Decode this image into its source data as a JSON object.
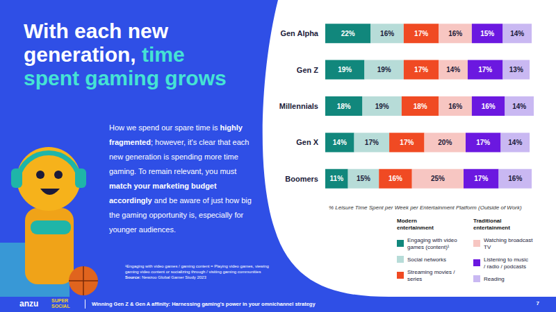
{
  "chart_data": {
    "type": "bar",
    "orientation": "horizontal",
    "stacked": true,
    "data_labels": true,
    "tick_labels": "y",
    "grid": false,
    "legend": "bottom",
    "xlabel": "% Leisure Time Spent per Week per Entertainment Platform (Outside of Work)",
    "categories": [
      "Gen Alpha",
      "Gen Z",
      "Millennials",
      "Gen X",
      "Boomers"
    ],
    "xlim": [
      0,
      101
    ],
    "series": [
      {
        "name": "Engaging with video games (content)¹",
        "group": "Modern entertainment",
        "color": "#11877c",
        "values": [
          22,
          19,
          18,
          14,
          11
        ],
        "value_labels": [
          "22%",
          "19%",
          "18%",
          "14%",
          "11%"
        ]
      },
      {
        "name": "Social networks",
        "group": "Modern entertainment",
        "color": "#b7dcd8",
        "values": [
          16,
          19,
          19,
          17,
          15
        ],
        "value_labels": [
          "16%",
          "19%",
          "19%",
          "17%",
          "15%"
        ]
      },
      {
        "name": "Streaming movies / series",
        "group": "Modern entertainment",
        "color": "#f04a23",
        "values": [
          17,
          17,
          18,
          17,
          16
        ],
        "value_labels": [
          "17%",
          "17%",
          "18%",
          "17%",
          "16%"
        ]
      },
      {
        "name": "Watching broadcast TV",
        "group": "Traditional entertainment",
        "color": "#f7c6c2",
        "values": [
          16,
          14,
          16,
          20,
          25
        ],
        "value_labels": [
          "16%",
          "14%",
          "16%",
          "20%",
          "25%"
        ]
      },
      {
        "name": "Listening to music / radio / podcasts",
        "group": "Traditional entertainment",
        "color": "#6b18e0",
        "values": [
          15,
          17,
          16,
          17,
          17
        ],
        "value_labels": [
          "15%",
          "17%",
          "16%",
          "17%",
          "17%"
        ]
      },
      {
        "name": "Reading",
        "group": "Traditional entertainment",
        "color": "#c9b8f2",
        "values": [
          14,
          13,
          14,
          14,
          16
        ],
        "value_labels": [
          "14%",
          "13%",
          "14%",
          "14%",
          "16%"
        ]
      }
    ]
  },
  "slide": {
    "headline": {
      "plain": "With each new generation,",
      "accent": "time spent gaming grows"
    },
    "body": [
      {
        "text": "How we spend our spare time is ",
        "bold": false
      },
      {
        "text": "highly fragmented",
        "bold": true
      },
      {
        "text": "; however, it's clear that each new generation is spending more time gaming. To remain relevant, you must ",
        "bold": false
      },
      {
        "text": "match your marketing budget accordingly",
        "bold": true
      },
      {
        "text": " and be aware of just how big the gaming opportunity is, especially for younger audiences.",
        "bold": false
      }
    ],
    "footnote": "¹Engaging with video games / gaming content = Playing video games, viewing gaming video content or socializing through / visiting gaming communities",
    "source": [
      {
        "text": "Source:",
        "bold": true
      },
      {
        "text": " Newzoo Global Gamer Study 2023",
        "bold": false
      }
    ],
    "footer": {
      "logos": [
        "anzu",
        "SUPER SOCIAL"
      ],
      "title": "Winning Gen Z & Gen A affinity: Harnessing gaming's power in your omnichannel strategy",
      "page": 7
    }
  }
}
